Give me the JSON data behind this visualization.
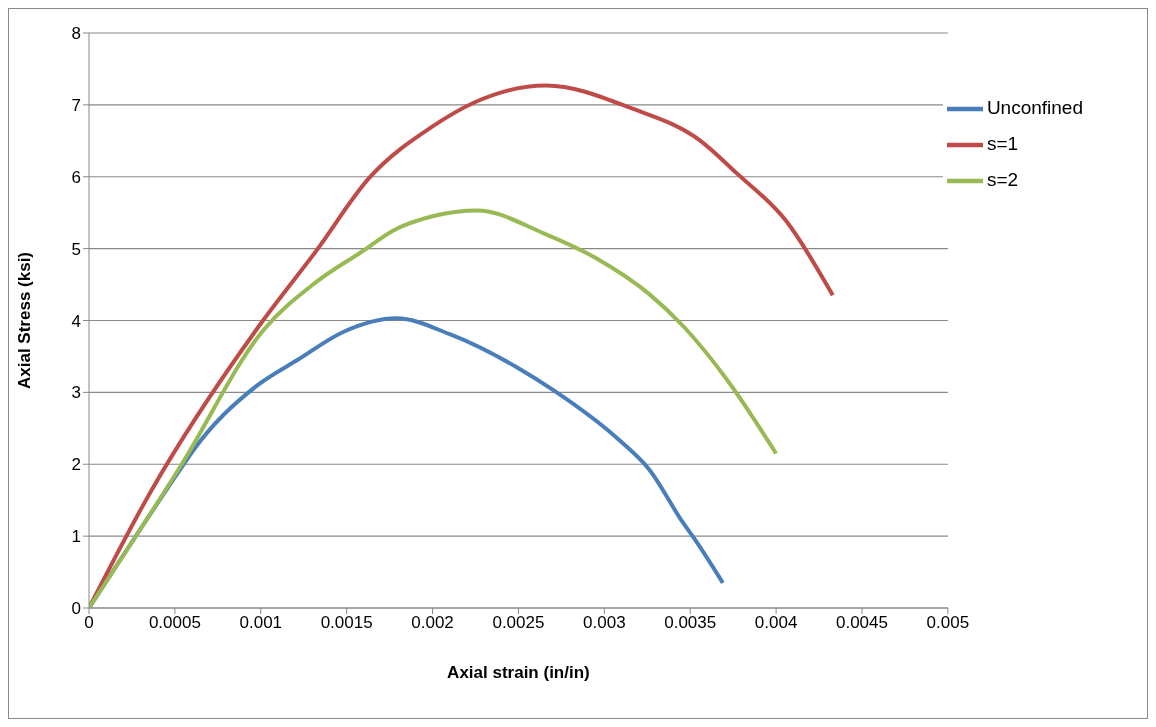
{
  "chart_data": {
    "type": "line",
    "xlabel": "Axial strain (in/in)",
    "ylabel": "Axial Stress (ksi)",
    "xlim": [
      0,
      0.005
    ],
    "xticks": [
      0,
      0.0005,
      0.001,
      0.0015,
      0.002,
      0.0025,
      0.003,
      0.0035,
      0.004,
      0.0045,
      0.005
    ],
    "ylim": [
      0,
      8
    ],
    "yticks": [
      0,
      1,
      2,
      3,
      4,
      5,
      6,
      7,
      8
    ],
    "grid": "y",
    "legend": "top right",
    "marker": "none",
    "line_style": "solid",
    "series": [
      {
        "name": "Unconfined",
        "color": "#4a7ebb",
        "x": [
          0,
          0.00054,
          0.0006,
          0.00097,
          0.00122,
          0.00148,
          0.00179,
          0.0021,
          0.00249,
          0.00271,
          0.00308,
          0.00326,
          0.00346,
          0.00352,
          0.00369
        ],
        "values": [
          0,
          1.96,
          2.17,
          3.08,
          3.46,
          3.84,
          4.03,
          3.81,
          3.35,
          3.02,
          2.35,
          1.93,
          1.18,
          0.98,
          0.35
        ]
      },
      {
        "name": "s=1",
        "color": "#be4b48",
        "x": [
          0,
          0.00035,
          0.00101,
          0.00132,
          0.00163,
          0.002,
          0.00224,
          0.00266,
          0.00316,
          0.00356,
          0.00377,
          0.00406,
          0.00433
        ],
        "values": [
          0,
          1.58,
          3.99,
          4.96,
          5.98,
          6.7,
          7.03,
          7.27,
          6.95,
          6.5,
          6.05,
          5.38,
          4.35
        ]
      },
      {
        "name": "s=2",
        "color": "#98b954",
        "x": [
          0,
          0.00054,
          0.00101,
          0.00132,
          0.00159,
          0.00177,
          0.002,
          0.00226,
          0.00265,
          0.00295,
          0.00326,
          0.00346,
          0.00371,
          0.004
        ],
        "values": [
          0,
          2.0,
          3.85,
          4.53,
          4.96,
          5.25,
          5.45,
          5.53,
          5.21,
          4.87,
          4.37,
          3.92,
          3.19,
          2.15
        ]
      }
    ]
  }
}
